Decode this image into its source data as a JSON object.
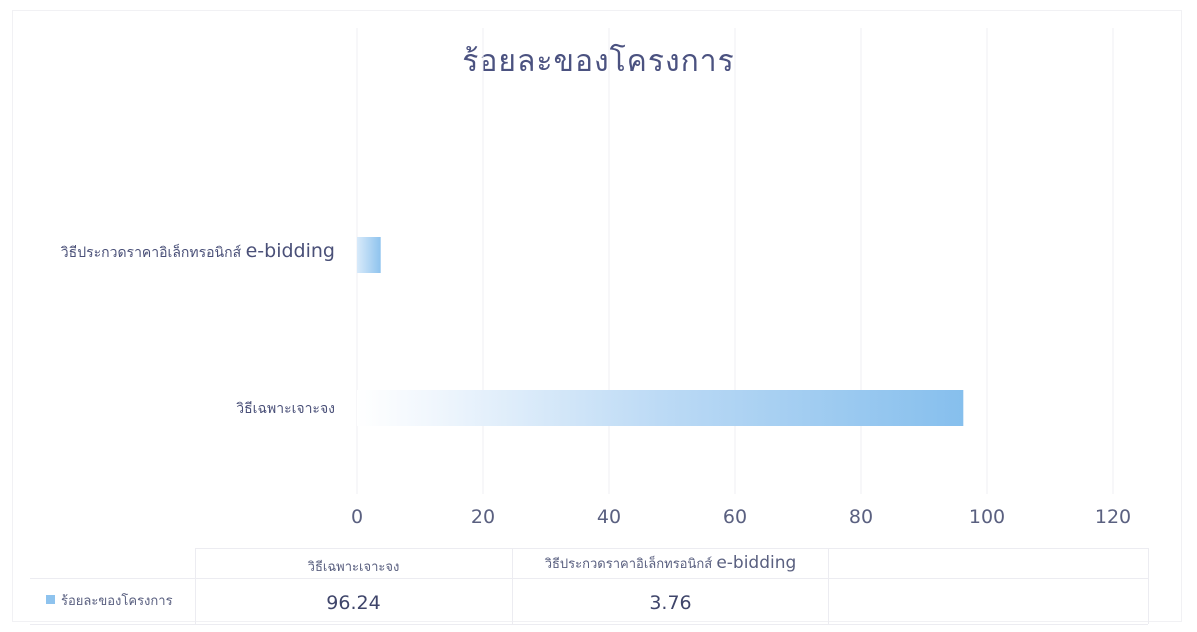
{
  "chart_data": {
    "type": "bar",
    "orientation": "horizontal",
    "title": "ร้อยละของโครงการ",
    "categories": [
      "วิธีเฉพาะเจาะจง",
      "วิธีประกวดราคาอิเล็กทรอนิกส์ e-bidding"
    ],
    "category_labels": {
      "specific": "วิธีเฉพาะเจาะจง",
      "ebid_th": "วิธีประกวดราคาอิเล็กทรอนิกส์",
      "ebid_en": "e-bidding"
    },
    "series": [
      {
        "name": "ร้อยละของโครงการ",
        "values": [
          96.24,
          3.76
        ],
        "color": "#8ec3ee"
      }
    ],
    "value_labels": [
      "96.24",
      "3.76"
    ],
    "xlim": [
      0,
      120
    ],
    "xticks": [
      "0",
      "20",
      "40",
      "60",
      "80",
      "100",
      "120"
    ],
    "grid": true,
    "legend_position": "bottom data table"
  },
  "colors": {
    "bar_light": "#f4f9fe",
    "bar_dark": "#86bfed",
    "grid": "#efeff3",
    "text": "#4a5078"
  }
}
